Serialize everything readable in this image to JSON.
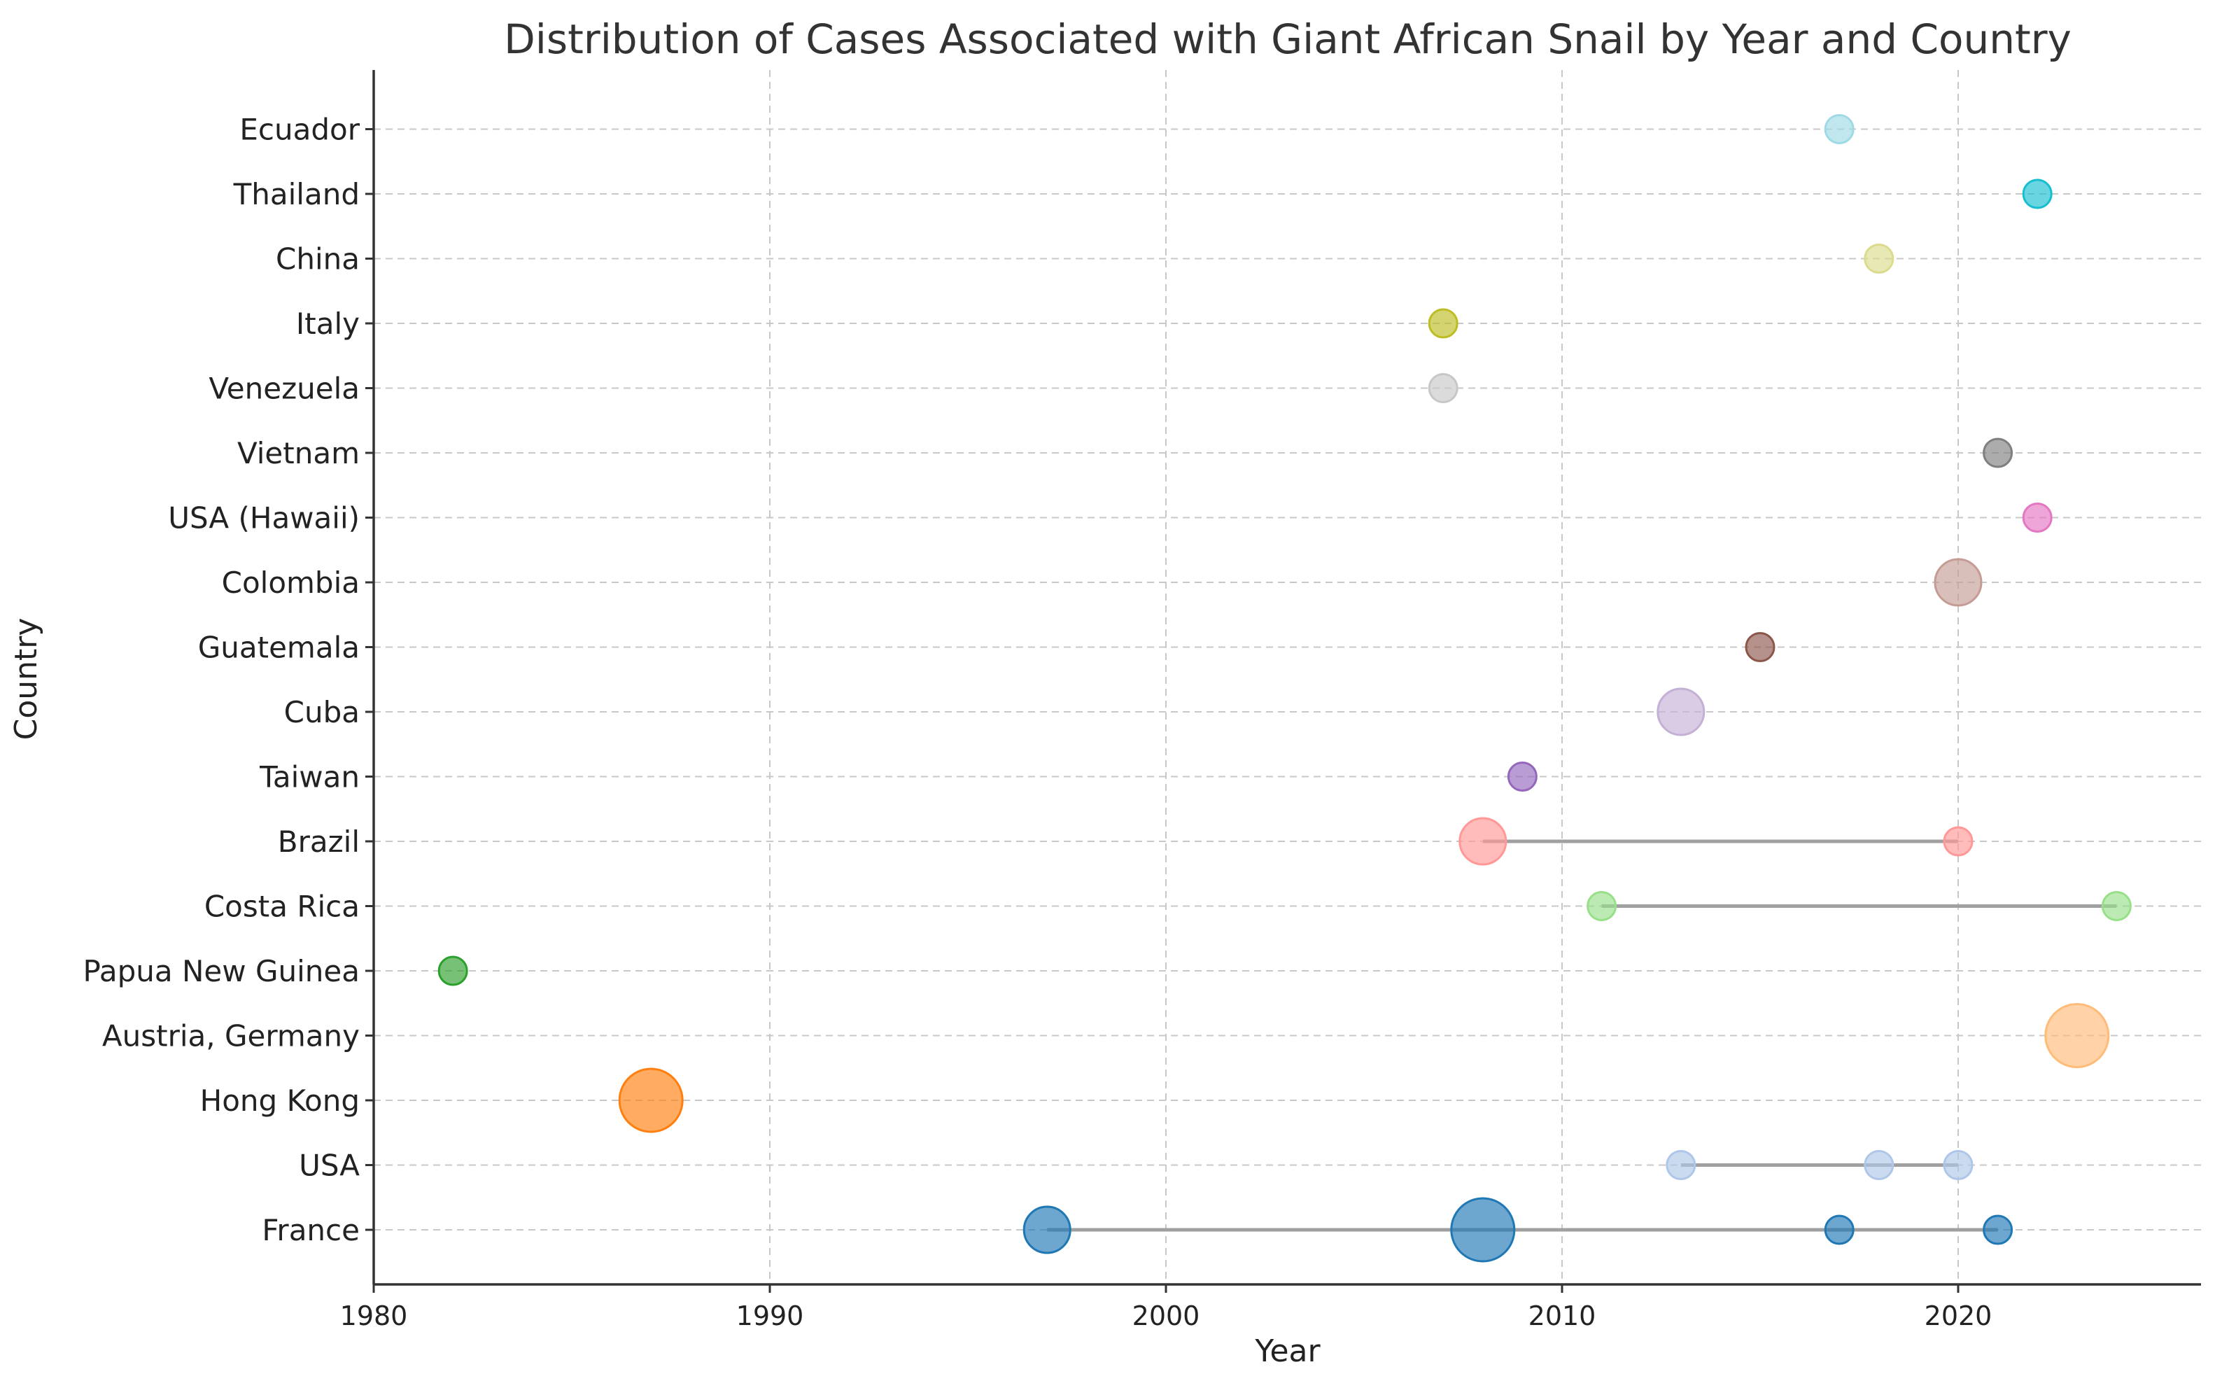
{
  "chart_data": {
    "type": "scatter",
    "title": "Distribution of Cases Associated with Giant African Snail by Year and Country",
    "xlabel": "Year",
    "ylabel": "Country",
    "xlim": [
      1980,
      2026
    ],
    "xticks": [
      1980,
      1990,
      2000,
      2010,
      2020
    ],
    "grid": true,
    "categories": [
      "France",
      "USA",
      "Hong Kong",
      "Austria, Germany",
      "Papua New Guinea",
      "Costa Rica",
      "Brazil",
      "Taiwan",
      "Cuba",
      "Guatemala",
      "Colombia",
      "USA (Hawaii)",
      "Vietnam",
      "Venezuela",
      "Italy",
      "China",
      "Thailand",
      "Ecuador"
    ],
    "series": [
      {
        "country": "France",
        "color": "#1f77b4",
        "points": [
          {
            "x": 1997,
            "size": 2
          },
          {
            "x": 2008,
            "size": 3
          },
          {
            "x": 2017,
            "size": 1
          },
          {
            "x": 2021,
            "size": 1
          }
        ]
      },
      {
        "country": "USA",
        "color": "#aec7e8",
        "points": [
          {
            "x": 2013,
            "size": 1
          },
          {
            "x": 2018,
            "size": 1
          },
          {
            "x": 2020,
            "size": 1
          }
        ]
      },
      {
        "country": "Hong Kong",
        "color": "#ff7f0e",
        "points": [
          {
            "x": 1987,
            "size": 3
          }
        ]
      },
      {
        "country": "Austria, Germany",
        "color": "#ffbb78",
        "points": [
          {
            "x": 2023,
            "size": 3
          }
        ]
      },
      {
        "country": "Papua New Guinea",
        "color": "#2ca02c",
        "points": [
          {
            "x": 1982,
            "size": 1
          }
        ]
      },
      {
        "country": "Costa Rica",
        "color": "#98df8a",
        "points": [
          {
            "x": 2011,
            "size": 1
          },
          {
            "x": 2024,
            "size": 1
          }
        ]
      },
      {
        "country": "Brazil",
        "color": "#ff9896",
        "points": [
          {
            "x": 2008,
            "size": 2
          },
          {
            "x": 2020,
            "size": 1
          }
        ]
      },
      {
        "country": "Taiwan",
        "color": "#9467bd",
        "points": [
          {
            "x": 2009,
            "size": 1
          }
        ]
      },
      {
        "country": "Cuba",
        "color": "#c5b0d5",
        "points": [
          {
            "x": 2013,
            "size": 2
          }
        ]
      },
      {
        "country": "Guatemala",
        "color": "#8c564b",
        "points": [
          {
            "x": 2015,
            "size": 1
          }
        ]
      },
      {
        "country": "Colombia",
        "color": "#c49c94",
        "points": [
          {
            "x": 2020,
            "size": 2
          }
        ]
      },
      {
        "country": "USA (Hawaii)",
        "color": "#e377c2",
        "points": [
          {
            "x": 2022,
            "size": 1
          }
        ]
      },
      {
        "country": "Vietnam",
        "color": "#7f7f7f",
        "points": [
          {
            "x": 2021,
            "size": 1
          }
        ]
      },
      {
        "country": "Venezuela",
        "color": "#c7c7c7",
        "points": [
          {
            "x": 2007,
            "size": 1
          }
        ]
      },
      {
        "country": "Italy",
        "color": "#bcbd22",
        "points": [
          {
            "x": 2007,
            "size": 1
          }
        ]
      },
      {
        "country": "China",
        "color": "#dbdb8d",
        "points": [
          {
            "x": 2018,
            "size": 1
          }
        ]
      },
      {
        "country": "Thailand",
        "color": "#17becf",
        "points": [
          {
            "x": 2022,
            "size": 1
          }
        ]
      },
      {
        "country": "Ecuador",
        "color": "#9edae5",
        "points": [
          {
            "x": 2017,
            "size": 1
          }
        ]
      }
    ]
  }
}
